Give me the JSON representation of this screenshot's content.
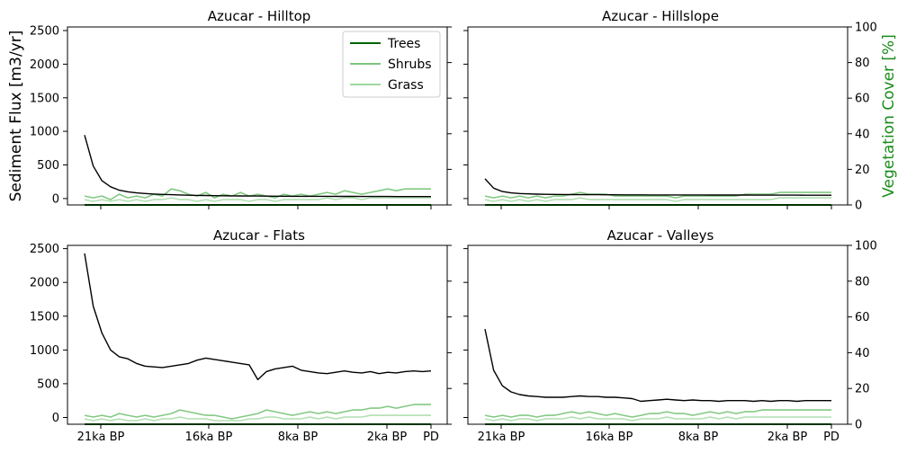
{
  "figure": {
    "ylabel_left": "Sediment Flux [m3/yr]",
    "ylabel_right": "Vegetation Cover [%]"
  },
  "legend": {
    "entries": [
      {
        "label": "Trees",
        "color": "#006400"
      },
      {
        "label": "Shrubs",
        "color": "#5cb85c"
      },
      {
        "label": "Grass",
        "color": "#9fd89f"
      }
    ]
  },
  "colors": {
    "sediment": "#000000",
    "trees": "#006400",
    "shrubs": "#6dbf6d",
    "grass": "#a8dca8",
    "right_axis_label": "#1a8c1a"
  },
  "axes": {
    "x_ticks": [
      "21ka BP",
      "16ka BP",
      "8ka BP",
      "2ka BP",
      "PD"
    ],
    "left_yticks": [
      0,
      500,
      1000,
      1500,
      2000,
      2500
    ],
    "right_yticks": [
      0,
      20,
      40,
      60,
      80,
      100
    ]
  },
  "chart_data": [
    {
      "type": "line",
      "title": "Azucar - Hilltop",
      "ylim": [
        -100,
        2550
      ],
      "y2lim": [
        0,
        100
      ],
      "sediment": [
        940,
        480,
        260,
        170,
        120,
        95,
        80,
        70,
        62,
        56,
        52,
        48,
        45,
        42,
        40,
        38,
        36,
        35,
        34,
        33,
        32,
        31,
        30,
        30,
        29,
        29,
        28,
        28,
        28,
        27,
        27,
        27,
        26,
        26,
        26,
        26,
        25,
        25,
        25,
        25,
        25
      ],
      "vegetation": {
        "trees": [
          0,
          0,
          0,
          0,
          0,
          0,
          0,
          0,
          0,
          0,
          0,
          0,
          0,
          0,
          0,
          0,
          0,
          0,
          0,
          0,
          0,
          0,
          0,
          0,
          0,
          0,
          0,
          0,
          0,
          0,
          0,
          0,
          0,
          0,
          0,
          0,
          0,
          0,
          0,
          0,
          0
        ],
        "shrubs": [
          5,
          4,
          5,
          3,
          6,
          4,
          5,
          4,
          6,
          5,
          9,
          8,
          6,
          5,
          7,
          4,
          6,
          5,
          7,
          5,
          6,
          5,
          4,
          6,
          5,
          6,
          5,
          6,
          7,
          6,
          8,
          7,
          6,
          7,
          8,
          9,
          8,
          9,
          9,
          9,
          9
        ],
        "grass": [
          3,
          2,
          3,
          2,
          3,
          2,
          3,
          2,
          3,
          3,
          4,
          3,
          3,
          2,
          3,
          2,
          3,
          3,
          3,
          2,
          3,
          3,
          2,
          3,
          3,
          3,
          3,
          3,
          4,
          3,
          4,
          4,
          3,
          4,
          4,
          4,
          4,
          4,
          4,
          4,
          4
        ]
      }
    },
    {
      "type": "line",
      "title": "Azucar - Hillslope",
      "ylim": [
        -100,
        2550
      ],
      "y2lim": [
        0,
        100
      ],
      "sediment": [
        290,
        150,
        100,
        80,
        70,
        65,
        60,
        58,
        56,
        55,
        54,
        53,
        52,
        52,
        51,
        51,
        50,
        50,
        50,
        49,
        49,
        49,
        48,
        48,
        48,
        48,
        47,
        47,
        47,
        47,
        47,
        46,
        46,
        46,
        46,
        46,
        46,
        45,
        45,
        45,
        45
      ],
      "vegetation": {
        "trees": [
          0,
          0,
          0,
          0,
          0,
          0,
          0,
          0,
          0,
          0,
          0,
          0,
          0,
          0,
          0,
          0,
          0,
          0,
          0,
          0,
          0,
          0,
          0,
          0,
          0,
          0,
          0,
          0,
          0,
          0,
          0,
          0,
          0,
          0,
          0,
          0,
          0,
          0,
          0,
          0,
          0
        ],
        "shrubs": [
          5,
          4,
          5,
          4,
          5,
          4,
          5,
          4,
          5,
          5,
          6,
          7,
          6,
          6,
          6,
          5,
          5,
          5,
          5,
          5,
          5,
          5,
          4,
          5,
          5,
          5,
          5,
          5,
          5,
          5,
          6,
          6,
          6,
          6,
          7,
          7,
          7,
          7,
          7,
          7,
          7
        ],
        "grass": [
          3,
          2,
          3,
          2,
          3,
          2,
          3,
          2,
          3,
          3,
          3,
          4,
          3,
          3,
          3,
          3,
          3,
          3,
          3,
          3,
          3,
          3,
          2,
          3,
          3,
          3,
          3,
          3,
          3,
          3,
          3,
          3,
          3,
          3,
          4,
          4,
          4,
          4,
          4,
          4,
          4
        ]
      }
    },
    {
      "type": "line",
      "title": "Azucar - Flats",
      "ylim": [
        -100,
        2550
      ],
      "y2lim": [
        0,
        100
      ],
      "sediment": [
        2430,
        1650,
        1250,
        1000,
        900,
        870,
        800,
        760,
        750,
        740,
        760,
        780,
        800,
        850,
        880,
        860,
        840,
        820,
        800,
        780,
        560,
        680,
        720,
        740,
        760,
        700,
        680,
        660,
        650,
        670,
        690,
        670,
        660,
        680,
        650,
        670,
        660,
        680,
        690,
        680,
        690
      ],
      "vegetation": {
        "trees": [
          0,
          0,
          0,
          0,
          0,
          0,
          0,
          0,
          0,
          0,
          0,
          0,
          0,
          0,
          0,
          0,
          0,
          0,
          0,
          0,
          0,
          0,
          0,
          0,
          0,
          0,
          0,
          0,
          0,
          0,
          0,
          0,
          0,
          0,
          0,
          0,
          0,
          0,
          0,
          0,
          0
        ],
        "shrubs": [
          5,
          4,
          5,
          4,
          6,
          5,
          4,
          5,
          4,
          5,
          6,
          8,
          7,
          6,
          5,
          5,
          4,
          3,
          4,
          5,
          6,
          8,
          7,
          6,
          5,
          6,
          7,
          6,
          7,
          6,
          7,
          8,
          8,
          9,
          9,
          10,
          9,
          10,
          11,
          11,
          11
        ],
        "grass": [
          3,
          2,
          3,
          2,
          3,
          2,
          2,
          3,
          2,
          3,
          3,
          4,
          3,
          3,
          3,
          2,
          2,
          2,
          2,
          3,
          3,
          4,
          4,
          3,
          3,
          3,
          4,
          3,
          4,
          3,
          4,
          4,
          4,
          5,
          5,
          5,
          5,
          5,
          5,
          5,
          5
        ]
      }
    },
    {
      "type": "line",
      "title": "Azucar - Valleys",
      "ylim": [
        -100,
        2550
      ],
      "y2lim": [
        0,
        100
      ],
      "sediment": [
        1310,
        700,
        470,
        380,
        340,
        320,
        310,
        300,
        300,
        300,
        310,
        320,
        310,
        310,
        300,
        300,
        290,
        280,
        240,
        250,
        260,
        270,
        260,
        250,
        260,
        250,
        250,
        240,
        250,
        250,
        250,
        240,
        250,
        240,
        250,
        250,
        240,
        250,
        250,
        250,
        250
      ],
      "vegetation": {
        "trees": [
          0,
          0,
          0,
          0,
          0,
          0,
          0,
          0,
          0,
          0,
          0,
          0,
          0,
          0,
          0,
          0,
          0,
          0,
          0,
          0,
          0,
          0,
          0,
          0,
          0,
          0,
          0,
          0,
          0,
          0,
          0,
          0,
          0,
          0,
          0,
          0,
          0,
          0,
          0,
          0,
          0
        ],
        "shrubs": [
          5,
          4,
          5,
          4,
          5,
          5,
          4,
          5,
          5,
          6,
          7,
          6,
          7,
          6,
          5,
          6,
          5,
          4,
          5,
          6,
          6,
          7,
          6,
          6,
          5,
          6,
          7,
          6,
          7,
          6,
          7,
          7,
          8,
          8,
          8,
          8,
          8,
          8,
          8,
          8,
          8
        ],
        "grass": [
          3,
          2,
          3,
          2,
          3,
          3,
          2,
          3,
          3,
          3,
          4,
          3,
          4,
          3,
          3,
          3,
          3,
          2,
          3,
          3,
          3,
          4,
          3,
          3,
          3,
          3,
          4,
          3,
          4,
          3,
          4,
          4,
          4,
          4,
          4,
          4,
          4,
          4,
          4,
          4,
          4
        ]
      }
    }
  ]
}
